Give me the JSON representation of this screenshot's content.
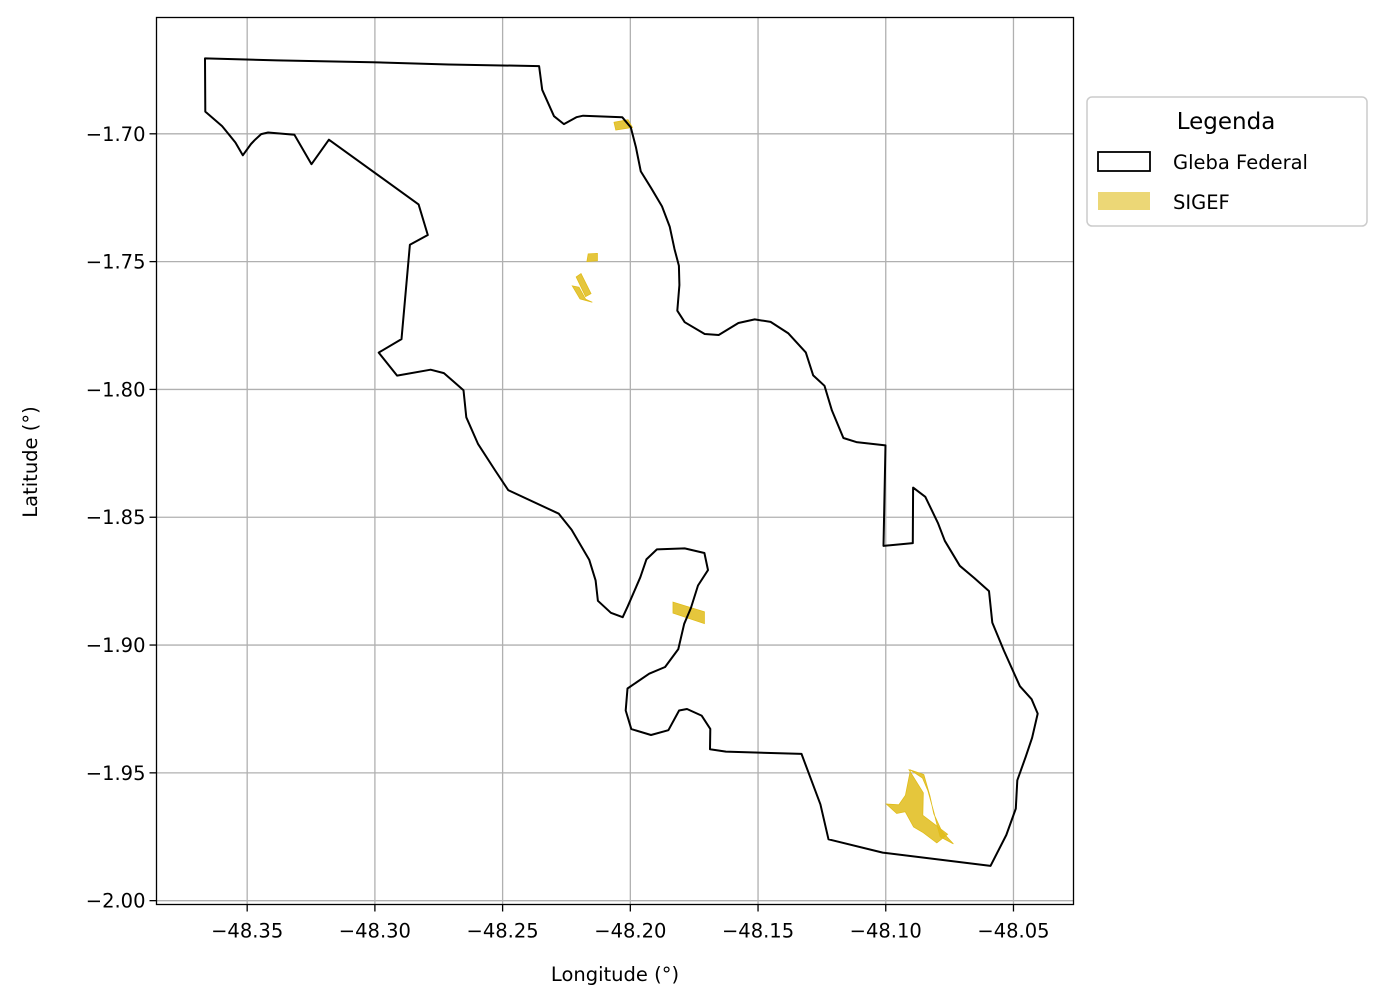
{
  "map": {
    "xlabel": "Longitude (°)",
    "ylabel": "Latitude (°)",
    "xlim": [
      -48.3855,
      -48.0265
    ],
    "ylim": [
      -2.0015,
      -1.6545
    ],
    "x_ticks": [
      -48.35,
      -48.3,
      -48.25,
      -48.2,
      -48.15,
      -48.1,
      -48.05
    ],
    "y_ticks": [
      -1.7,
      -1.75,
      -1.8,
      -1.85,
      -1.9,
      -1.95,
      -2.0
    ],
    "x_tick_labels": [
      "−48.35",
      "−48.30",
      "−48.25",
      "−48.20",
      "−48.15",
      "−48.10",
      "−48.05"
    ],
    "y_tick_labels": [
      "−1.70",
      "−1.75",
      "−1.80",
      "−1.85",
      "−1.90",
      "−1.95",
      "−2.00"
    ],
    "grid": true,
    "colors": {
      "gleba_edge": "#000000",
      "sigef_fill": "#E0BC1A",
      "grid": "#b0b0b0"
    }
  },
  "legend": {
    "title": "Legenda",
    "placement": "outside upper-right",
    "items": [
      {
        "label": "Gleba Federal",
        "swatch": "outline"
      },
      {
        "label": "SIGEF",
        "swatch": "fill"
      }
    ]
  },
  "gleba_federal": {
    "name": "Gleba Federal",
    "outline": [
      [
        -48.3665,
        -1.6705
      ],
      [
        -48.3382,
        -1.6713
      ],
      [
        -48.3011,
        -1.672
      ],
      [
        -48.2712,
        -1.6729
      ],
      [
        -48.2357,
        -1.6735
      ],
      [
        -48.2345,
        -1.6828
      ],
      [
        -48.2299,
        -1.6931
      ],
      [
        -48.226,
        -1.6962
      ],
      [
        -48.2211,
        -1.6935
      ],
      [
        -48.2185,
        -1.6929
      ],
      [
        -48.2032,
        -1.6935
      ],
      [
        -48.1998,
        -1.6975
      ],
      [
        -48.1978,
        -1.7052
      ],
      [
        -48.1959,
        -1.7147
      ],
      [
        -48.1918,
        -1.7213
      ],
      [
        -48.1876,
        -1.7284
      ],
      [
        -48.1846,
        -1.7363
      ],
      [
        -48.1827,
        -1.7451
      ],
      [
        -48.181,
        -1.7516
      ],
      [
        -48.1808,
        -1.7592
      ],
      [
        -48.1816,
        -1.7692
      ],
      [
        -48.1787,
        -1.7737
      ],
      [
        -48.1709,
        -1.7783
      ],
      [
        -48.1654,
        -1.7787
      ],
      [
        -48.1577,
        -1.774
      ],
      [
        -48.1513,
        -1.7726
      ],
      [
        -48.1451,
        -1.7736
      ],
      [
        -48.1381,
        -1.7781
      ],
      [
        -48.1313,
        -1.7855
      ],
      [
        -48.1284,
        -1.7945
      ],
      [
        -48.124,
        -1.7986
      ],
      [
        -48.1211,
        -1.8082
      ],
      [
        -48.1166,
        -1.819
      ],
      [
        -48.1115,
        -1.8206
      ],
      [
        -48.1001,
        -1.8219
      ],
      [
        -48.1009,
        -1.8612
      ],
      [
        -48.0894,
        -1.8601
      ],
      [
        -48.0893,
        -1.8384
      ],
      [
        -48.0845,
        -1.842
      ],
      [
        -48.0796,
        -1.8522
      ],
      [
        -48.0769,
        -1.8592
      ],
      [
        -48.071,
        -1.869
      ],
      [
        -48.0653,
        -1.8738
      ],
      [
        -48.0596,
        -1.8789
      ],
      [
        -48.0583,
        -1.8912
      ],
      [
        -48.0538,
        -1.9021
      ],
      [
        -48.0475,
        -1.9161
      ],
      [
        -48.0429,
        -1.9212
      ],
      [
        -48.0405,
        -1.9268
      ],
      [
        -48.0427,
        -1.9363
      ],
      [
        -48.0452,
        -1.9437
      ],
      [
        -48.0485,
        -1.9529
      ],
      [
        -48.0491,
        -1.964
      ],
      [
        -48.0528,
        -1.9743
      ],
      [
        -48.059,
        -1.9864
      ],
      [
        -48.1012,
        -1.9812
      ],
      [
        -48.1224,
        -1.976
      ],
      [
        -48.1256,
        -1.9623
      ],
      [
        -48.133,
        -1.9426
      ],
      [
        -48.1626,
        -1.9417
      ],
      [
        -48.1688,
        -1.9408
      ],
      [
        -48.1687,
        -1.9328
      ],
      [
        -48.1721,
        -1.9276
      ],
      [
        -48.1778,
        -1.925
      ],
      [
        -48.1809,
        -1.9256
      ],
      [
        -48.1851,
        -1.9333
      ],
      [
        -48.1919,
        -1.9352
      ],
      [
        -48.1996,
        -1.9329
      ],
      [
        -48.2018,
        -1.9256
      ],
      [
        -48.2011,
        -1.917
      ],
      [
        -48.1926,
        -1.9112
      ],
      [
        -48.1864,
        -1.9086
      ],
      [
        -48.1812,
        -1.9016
      ],
      [
        -48.1789,
        -1.8917
      ],
      [
        -48.1763,
        -1.8855
      ],
      [
        -48.1735,
        -1.8767
      ],
      [
        -48.1696,
        -1.8707
      ],
      [
        -48.171,
        -1.864
      ],
      [
        -48.1787,
        -1.8622
      ],
      [
        -48.1896,
        -1.8626
      ],
      [
        -48.1937,
        -1.8665
      ],
      [
        -48.1961,
        -1.8735
      ],
      [
        -48.201,
        -1.8848
      ],
      [
        -48.203,
        -1.8891
      ],
      [
        -48.2076,
        -1.8874
      ],
      [
        -48.2127,
        -1.8827
      ],
      [
        -48.2136,
        -1.8747
      ],
      [
        -48.2161,
        -1.8666
      ],
      [
        -48.223,
        -1.8549
      ],
      [
        -48.228,
        -1.8486
      ],
      [
        -48.2478,
        -1.8394
      ],
      [
        -48.2529,
        -1.8317
      ],
      [
        -48.2596,
        -1.8214
      ],
      [
        -48.2642,
        -1.8109
      ],
      [
        -48.2653,
        -1.8003
      ],
      [
        -48.273,
        -1.7936
      ],
      [
        -48.2782,
        -1.7923
      ],
      [
        -48.2913,
        -1.7946
      ],
      [
        -48.2985,
        -1.7856
      ],
      [
        -48.2896,
        -1.7803
      ],
      [
        -48.2863,
        -1.7434
      ],
      [
        -48.2793,
        -1.7396
      ],
      [
        -48.2829,
        -1.7276
      ],
      [
        -48.318,
        -1.7023
      ],
      [
        -48.3248,
        -1.7119
      ],
      [
        -48.3315,
        -1.7004
      ],
      [
        -48.3418,
        -1.6995
      ],
      [
        -48.3445,
        -1.7001
      ],
      [
        -48.3471,
        -1.7025
      ],
      [
        -48.3485,
        -1.704
      ],
      [
        -48.3517,
        -1.7084
      ],
      [
        -48.3546,
        -1.7034
      ],
      [
        -48.3598,
        -1.697
      ],
      [
        -48.3664,
        -1.6913
      ],
      [
        -48.3665,
        -1.6705
      ]
    ]
  },
  "sigef": {
    "name": "SIGEF",
    "parcels": [
      [
        [
          -48.2064,
          -1.6955
        ],
        [
          -48.2009,
          -1.6945
        ],
        [
          -48.1992,
          -1.6975
        ],
        [
          -48.2057,
          -1.6985
        ]
      ],
      [
        [
          -48.2165,
          -1.747
        ],
        [
          -48.2129,
          -1.7468
        ],
        [
          -48.2129,
          -1.7497
        ],
        [
          -48.217,
          -1.75
        ]
      ],
      [
        [
          -48.2212,
          -1.756
        ],
        [
          -48.2193,
          -1.7547
        ],
        [
          -48.2154,
          -1.7625
        ],
        [
          -48.2175,
          -1.7637
        ]
      ],
      [
        [
          -48.2227,
          -1.7595
        ],
        [
          -48.2201,
          -1.76
        ],
        [
          -48.2175,
          -1.7647
        ],
        [
          -48.2149,
          -1.7659
        ],
        [
          -48.2197,
          -1.7646
        ]
      ],
      [
        [
          -48.1833,
          -1.8832
        ],
        [
          -48.171,
          -1.887
        ],
        [
          -48.171,
          -1.8916
        ],
        [
          -48.1833,
          -1.8875
        ]
      ],
      [
        [
          -48.0903,
          -1.9489
        ],
        [
          -48.0851,
          -1.9507
        ],
        [
          -48.0827,
          -1.959
        ],
        [
          -48.0812,
          -1.966
        ],
        [
          -48.0781,
          -1.9728
        ],
        [
          -48.0735,
          -1.9778
        ],
        [
          -48.0787,
          -1.975
        ],
        [
          -48.0797,
          -1.9713
        ],
        [
          -48.0811,
          -1.9656
        ],
        [
          -48.0835,
          -1.957
        ],
        [
          -48.0856,
          -1.952
        ]
      ],
      [
        [
          -48.0909,
          -1.9488
        ],
        [
          -48.0903,
          -1.9489
        ],
        [
          -48.0923,
          -1.9588
        ],
        [
          -48.0949,
          -1.9625
        ],
        [
          -48.0998,
          -1.9622
        ],
        [
          -48.0957,
          -1.9659
        ],
        [
          -48.0924,
          -1.9652
        ],
        [
          -48.0891,
          -1.9712
        ],
        [
          -48.0853,
          -1.9734
        ],
        [
          -48.08,
          -1.9774
        ],
        [
          -48.0758,
          -1.974
        ],
        [
          -48.0807,
          -1.9703
        ],
        [
          -48.0855,
          -1.9666
        ],
        [
          -48.0853,
          -1.9578
        ]
      ]
    ]
  }
}
